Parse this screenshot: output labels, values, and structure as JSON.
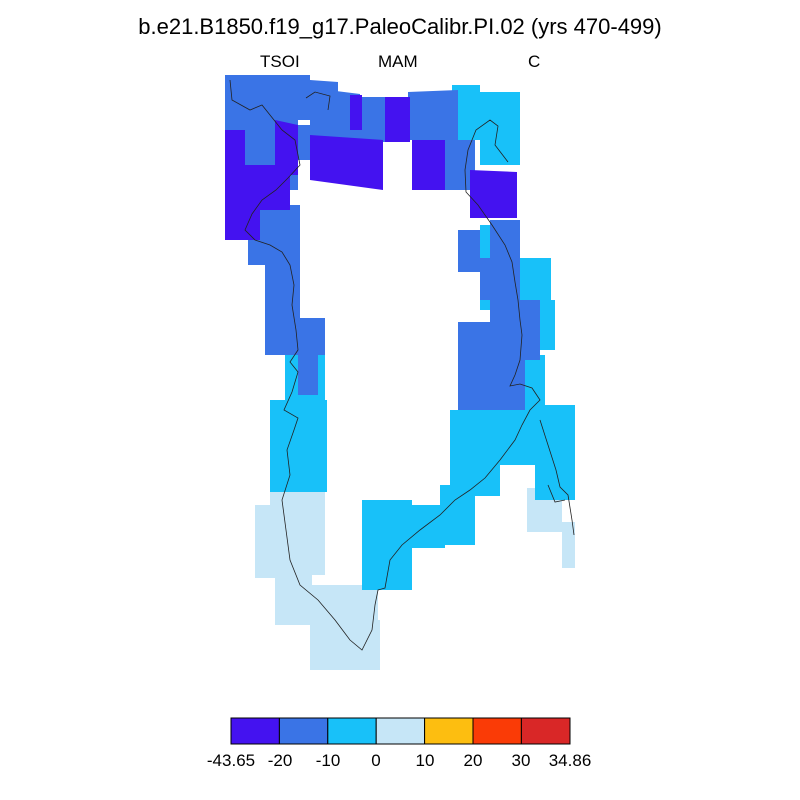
{
  "figure": {
    "title": "b.e21.B1850.f19_g17.PaleoCalibr.PI.02 (yrs 470-499)",
    "left_label": "TSOI",
    "center_label": "MAM",
    "right_label": "C"
  },
  "colorbar": {
    "labels": [
      "-43.65",
      "-20",
      "-10",
      "0",
      "10",
      "20",
      "30",
      "34.86"
    ],
    "colors": [
      "#4412f0",
      "#3a74e6",
      "#18c1f9",
      "#c6e6f7",
      "#fdbe10",
      "#fa3b06",
      "#d92727"
    ]
  },
  "map": {
    "region": "Greenland",
    "variable": "TSOI",
    "season": "MAM",
    "units": "C"
  }
}
